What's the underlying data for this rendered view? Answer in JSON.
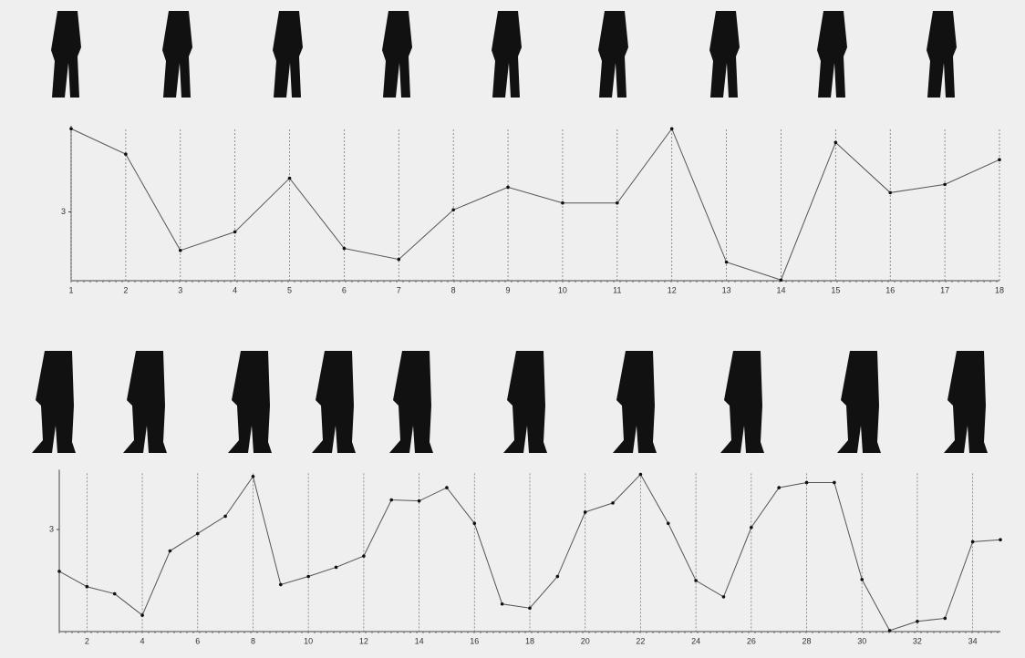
{
  "chart_data": [
    {
      "type": "line",
      "x": [
        1,
        2,
        3,
        4,
        5,
        6,
        7,
        8,
        9,
        10,
        11,
        12,
        13,
        14,
        15,
        16,
        17,
        18
      ],
      "series": [
        {
          "color": "#555555",
          "values": [
            4.21,
            3.84,
            2.44,
            2.71,
            3.49,
            2.47,
            2.31,
            3.03,
            3.36,
            3.13,
            3.13,
            4.21,
            2.27,
            2.01,
            4.01,
            3.28,
            3.4,
            3.76
          ]
        }
      ],
      "xlim": [
        1,
        18
      ],
      "xticks": [
        1,
        2,
        3,
        4,
        5,
        6,
        7,
        8,
        9,
        10,
        11,
        12,
        13,
        14,
        15,
        16,
        17,
        18
      ],
      "ylim": [
        2,
        4.2
      ],
      "yticks": [
        3
      ],
      "grid": true
    },
    {
      "type": "line",
      "x": [
        1,
        2,
        3,
        4,
        5,
        6,
        7,
        8,
        9,
        10,
        11,
        12,
        13,
        14,
        15,
        16,
        17,
        18,
        19,
        20,
        21,
        22,
        23,
        24,
        25,
        26,
        27,
        28,
        29,
        30,
        31,
        32,
        33,
        34,
        35
      ],
      "series": [
        {
          "color": "#555555",
          "values": [
            2.59,
            2.44,
            2.37,
            2.16,
            2.79,
            2.96,
            3.13,
            3.52,
            2.46,
            2.54,
            2.63,
            2.74,
            3.29,
            3.28,
            3.41,
            3.06,
            2.27,
            2.23,
            2.54,
            3.17,
            3.26,
            3.54,
            3.06,
            2.5,
            2.34,
            3.02,
            3.41,
            3.46,
            3.46,
            2.51,
            2.01,
            2.1,
            2.13,
            2.88,
            2.9
          ]
        }
      ],
      "xlim": [
        1,
        35
      ],
      "xticks": [
        2,
        4,
        6,
        8,
        10,
        12,
        14,
        16,
        18,
        20,
        22,
        24,
        26,
        28,
        30,
        32,
        34
      ],
      "ylim": [
        2,
        3.55
      ],
      "yticks": [
        3
      ],
      "grid": true
    }
  ]
}
